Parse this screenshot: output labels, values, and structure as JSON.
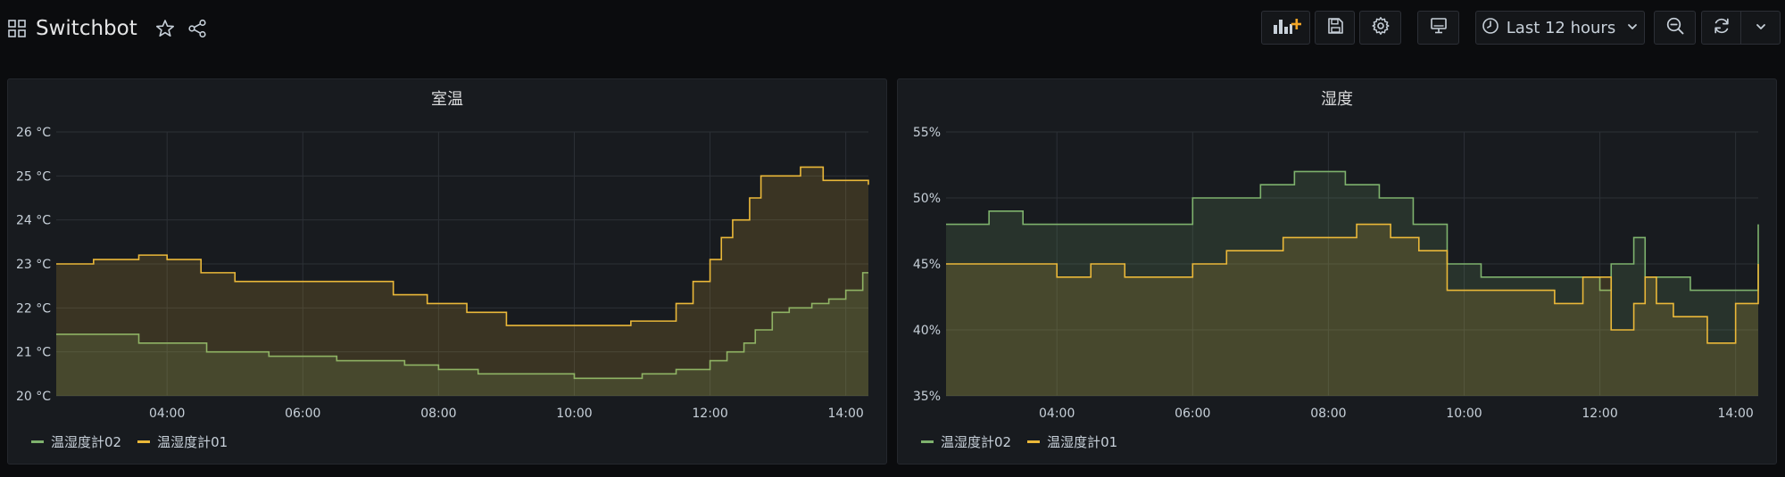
{
  "header": {
    "title": "Switchbot",
    "time_range_label": "Last 12 hours"
  },
  "icons": {
    "apps": "grid-icon",
    "star": "star-icon",
    "share": "share-icon",
    "add_panel": "add-panel-icon",
    "save": "save-icon",
    "settings": "gear-icon",
    "tv": "monitor-icon",
    "clock": "clock-icon",
    "chevron": "chevron-down-icon",
    "zoom_out": "zoom-out-icon",
    "refresh": "refresh-icon"
  },
  "colors": {
    "green": "#7eb26d",
    "yellow": "#eab839",
    "accent_orange": "#f2a526"
  },
  "panels": [
    {
      "title": "室温",
      "legend": [
        "温湿度計02",
        "温湿度計01"
      ]
    },
    {
      "title": "湿度",
      "legend": [
        "温湿度計02",
        "温湿度計01"
      ]
    }
  ],
  "chart_data": [
    {
      "type": "line",
      "title": "室温",
      "x_ticks": [
        "04:00",
        "06:00",
        "08:00",
        "10:00",
        "12:00",
        "14:00"
      ],
      "y_ticks": [
        "20 °C",
        "21 °C",
        "22 °C",
        "23 °C",
        "24 °C",
        "25 °C",
        "26 °C"
      ],
      "ylim": [
        20,
        26
      ],
      "xlim": [
        "02:22",
        "14:20"
      ],
      "fill": true,
      "grid": true,
      "legend_position": "bottom-left",
      "series": [
        {
          "name": "温湿度計02",
          "color": "#7eb26d",
          "x": [
            "02:22",
            "03:00",
            "03:35",
            "04:35",
            "05:30",
            "06:30",
            "07:30",
            "08:00",
            "08:35",
            "09:15",
            "10:00",
            "10:30",
            "11:00",
            "11:30",
            "12:00",
            "12:15",
            "12:30",
            "12:40",
            "12:55",
            "13:10",
            "13:30",
            "13:45",
            "14:00",
            "14:15",
            "14:20"
          ],
          "y": [
            21.4,
            21.4,
            21.2,
            21.0,
            20.9,
            20.8,
            20.7,
            20.6,
            20.5,
            20.5,
            20.4,
            20.4,
            20.5,
            20.6,
            20.8,
            21.0,
            21.2,
            21.5,
            21.9,
            22.0,
            22.1,
            22.2,
            22.4,
            22.8,
            22.8
          ]
        },
        {
          "name": "温湿度計01",
          "color": "#eab839",
          "x": [
            "02:22",
            "02:55",
            "03:35",
            "04:00",
            "04:30",
            "05:00",
            "06:00",
            "07:20",
            "07:50",
            "08:25",
            "09:00",
            "10:00",
            "10:50",
            "11:30",
            "11:45",
            "12:00",
            "12:10",
            "12:20",
            "12:35",
            "12:45",
            "13:00",
            "13:20",
            "13:40",
            "14:00",
            "14:20"
          ],
          "y": [
            23.0,
            23.1,
            23.2,
            23.1,
            22.8,
            22.6,
            22.6,
            22.3,
            22.1,
            21.9,
            21.6,
            21.6,
            21.7,
            22.1,
            22.6,
            23.1,
            23.6,
            24.0,
            24.5,
            25.0,
            25.0,
            25.2,
            24.9,
            24.9,
            24.8
          ]
        }
      ]
    },
    {
      "type": "line",
      "title": "湿度",
      "x_ticks": [
        "04:00",
        "06:00",
        "08:00",
        "10:00",
        "12:00",
        "14:00"
      ],
      "y_ticks": [
        "35%",
        "40%",
        "45%",
        "50%",
        "55%"
      ],
      "ylim": [
        35,
        55
      ],
      "xlim": [
        "02:22",
        "14:20"
      ],
      "fill": true,
      "grid": true,
      "legend_position": "bottom-left",
      "series": [
        {
          "name": "温湿度計02",
          "color": "#7eb26d",
          "x": [
            "02:22",
            "03:00",
            "03:30",
            "05:30",
            "06:00",
            "07:00",
            "07:30",
            "08:15",
            "08:45",
            "09:15",
            "09:45",
            "10:15",
            "12:00",
            "12:10",
            "12:30",
            "12:40",
            "12:50",
            "13:20",
            "14:00",
            "14:20"
          ],
          "y": [
            48,
            49,
            48,
            48,
            50,
            51,
            52,
            51,
            50,
            48,
            45,
            44,
            43,
            45,
            47,
            44,
            44,
            43,
            43,
            48
          ]
        },
        {
          "name": "温湿度計01",
          "color": "#eab839",
          "x": [
            "02:22",
            "03:35",
            "04:00",
            "04:30",
            "05:00",
            "06:00",
            "06:30",
            "07:20",
            "08:25",
            "08:55",
            "09:20",
            "09:45",
            "10:15",
            "11:20",
            "11:45",
            "12:10",
            "12:30",
            "12:40",
            "12:50",
            "13:05",
            "13:35",
            "14:00",
            "14:20"
          ],
          "y": [
            45,
            45,
            44,
            45,
            44,
            45,
            46,
            47,
            48,
            47,
            46,
            43,
            43,
            42,
            44,
            40,
            42,
            44,
            42,
            41,
            39,
            42,
            45
          ]
        }
      ]
    }
  ]
}
